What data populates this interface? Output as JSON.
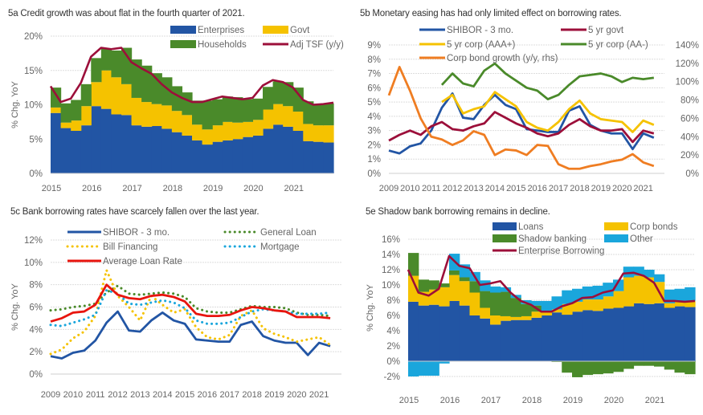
{
  "colors": {
    "blue": "#2255a4",
    "yellow": "#f5c200",
    "green": "#4a8a2a",
    "maroon": "#9c0f3a",
    "orange": "#ef7d22",
    "cyan": "#1aa6dc",
    "red": "#e8150e",
    "grid": "#dddddd",
    "tick": "#666666"
  },
  "chart_data": [
    {
      "id": "5a",
      "type": "area",
      "title": "5a Credit growth was about flat in the fourth quarter of 2021.",
      "ylabel": "% Chg. YoY",
      "ylim": [
        0,
        20
      ],
      "yticks": [
        "0%",
        "5%",
        "10%",
        "15%",
        "20%"
      ],
      "xticks": [
        "2015",
        "2016",
        "2017",
        "2018",
        "2019",
        "2020",
        "2021"
      ],
      "xlim": [
        2015,
        2022
      ],
      "grid": true,
      "legend": "top-right",
      "x": [
        2015.0,
        2015.25,
        2015.5,
        2015.75,
        2016.0,
        2016.25,
        2016.5,
        2016.75,
        2017.0,
        2017.25,
        2017.5,
        2017.75,
        2018.0,
        2018.25,
        2018.5,
        2018.75,
        2019.0,
        2019.25,
        2019.5,
        2019.75,
        2020.0,
        2020.25,
        2020.5,
        2020.75,
        2021.0,
        2021.25,
        2021.5,
        2021.75,
        2022.0
      ],
      "series": [
        {
          "name": "Enterprises",
          "kind": "stack",
          "color": "blue",
          "values": [
            8.8,
            6.6,
            6.2,
            7.0,
            9.8,
            9.4,
            8.6,
            8.5,
            7.0,
            6.8,
            6.9,
            6.5,
            6.0,
            5.5,
            4.8,
            4.2,
            4.6,
            4.8,
            5.0,
            5.3,
            5.5,
            6.5,
            7.1,
            6.8,
            6.2,
            4.7,
            4.6,
            4.5,
            4.6
          ]
        },
        {
          "name": "Govt",
          "kind": "stack",
          "color": "yellow",
          "values": [
            0.8,
            0.8,
            1.5,
            2.8,
            3.5,
            5.6,
            5.4,
            4.5,
            4.0,
            3.6,
            3.2,
            3.4,
            3.1,
            3.0,
            2.3,
            2.2,
            2.4,
            2.7,
            2.4,
            2.2,
            2.3,
            2.8,
            3.0,
            3.0,
            2.8,
            2.5,
            2.4,
            2.5,
            2.6
          ]
        },
        {
          "name": "Households",
          "kind": "stack",
          "color": "green",
          "values": [
            2.9,
            2.8,
            3.0,
            3.2,
            3.5,
            3.2,
            3.9,
            5.3,
            5.6,
            5.3,
            4.5,
            4.1,
            3.6,
            3.3,
            3.5,
            4.2,
            3.8,
            3.7,
            3.7,
            3.3,
            3.1,
            3.3,
            3.3,
            3.5,
            3.5,
            3.3,
            3.1,
            3.2,
            3.1
          ]
        },
        {
          "name": "Adj TSF (y/y)",
          "kind": "line",
          "color": "maroon",
          "values": [
            12.7,
            10.4,
            10.9,
            13.2,
            17.0,
            18.3,
            18.1,
            18.3,
            16.2,
            15.3,
            14.5,
            13.0,
            11.8,
            11.0,
            10.4,
            10.4,
            10.8,
            11.2,
            11.0,
            10.8,
            11.0,
            12.8,
            13.6,
            13.3,
            12.5,
            10.7,
            10.0,
            10.1,
            10.3
          ]
        }
      ]
    },
    {
      "id": "5b",
      "type": "line",
      "title": "5b Monetary easing has had only limited effect on borrowing rates.",
      "ylabel": "",
      "ylim": [
        0,
        9
      ],
      "yticks": [
        "0%",
        "1%",
        "2%",
        "3%",
        "4%",
        "5%",
        "6%",
        "7%",
        "8%",
        "9%"
      ],
      "y2lim": [
        0,
        140
      ],
      "y2ticks": [
        "0%",
        "20%",
        "40%",
        "60%",
        "80%",
        "100%",
        "120%",
        "140%"
      ],
      "xticks": [
        "2009",
        "2010",
        "2011",
        "2012",
        "2013",
        "2014",
        "2015",
        "2016",
        "2017",
        "2018",
        "2019",
        "2020",
        "2021"
      ],
      "xlim": [
        2009,
        2022
      ],
      "grid": true,
      "legend": "top",
      "x": [
        2009.0,
        2009.5,
        2010.0,
        2010.5,
        2011.0,
        2011.5,
        2012.0,
        2012.5,
        2013.0,
        2013.5,
        2014.0,
        2014.5,
        2015.0,
        2015.5,
        2016.0,
        2016.5,
        2017.0,
        2017.5,
        2018.0,
        2018.5,
        2019.0,
        2019.5,
        2020.0,
        2020.5,
        2021.0,
        2021.5
      ],
      "series": [
        {
          "name": "SHIBOR - 3 mo.",
          "axis": "left",
          "color": "blue",
          "values": [
            1.6,
            1.4,
            1.9,
            2.1,
            3.0,
            4.6,
            5.6,
            3.9,
            3.8,
            4.8,
            5.5,
            4.8,
            4.5,
            3.1,
            3.0,
            2.9,
            2.9,
            4.4,
            4.7,
            3.4,
            3.0,
            2.8,
            2.8,
            1.7,
            2.8,
            2.5
          ]
        },
        {
          "name": "5 yr govt",
          "axis": "left",
          "color": "maroon",
          "values": [
            2.3,
            2.7,
            3.0,
            2.7,
            3.3,
            3.6,
            3.1,
            3.0,
            3.3,
            3.5,
            4.3,
            3.9,
            3.5,
            3.2,
            2.8,
            2.6,
            2.8,
            3.4,
            3.8,
            3.3,
            3.0,
            3.0,
            3.1,
            2.2,
            3.0,
            2.8
          ]
        },
        {
          "name": "5 yr corp (AAA+)",
          "axis": "left",
          "color": "yellow",
          "values": [
            null,
            null,
            null,
            null,
            null,
            5.0,
            5.5,
            4.2,
            4.5,
            4.7,
            5.7,
            5.2,
            4.7,
            3.6,
            3.2,
            3.0,
            3.6,
            4.5,
            5.1,
            4.2,
            3.8,
            3.7,
            3.6,
            2.9,
            3.7,
            3.4
          ]
        },
        {
          "name": "5 yr corp (AA-)",
          "axis": "left",
          "color": "green",
          "values": [
            null,
            null,
            null,
            null,
            null,
            6.2,
            7.0,
            6.3,
            6.1,
            7.2,
            7.7,
            7.0,
            6.5,
            6.0,
            5.8,
            5.2,
            5.5,
            6.2,
            6.8,
            6.9,
            7.0,
            6.8,
            6.4,
            6.7,
            6.6,
            6.7
          ]
        },
        {
          "name": "Corp bond growth (y/y, rhs)",
          "axis": "right",
          "color": "orange",
          "values": [
            85,
            116,
            90,
            60,
            40,
            37,
            31,
            36,
            46,
            42,
            20,
            26,
            25,
            20,
            31,
            30,
            10,
            5,
            5,
            8,
            10,
            13,
            15,
            21,
            12,
            8
          ]
        }
      ]
    },
    {
      "id": "5c",
      "type": "line",
      "title": "5c Bank borrowing rates have scarcely fallen over the last year.",
      "ylabel": "% Chg. YoY",
      "ylim": [
        0,
        12
      ],
      "yticks": [
        "0%",
        "2%",
        "4%",
        "6%",
        "8%",
        "10%",
        "12%"
      ],
      "xticks": [
        "2009",
        "2010",
        "2011",
        "2012",
        "2013",
        "2014",
        "2015",
        "2016",
        "2017",
        "2018",
        "2019",
        "2020",
        "2021"
      ],
      "xlim": [
        2009,
        2022
      ],
      "grid": true,
      "legend": "top",
      "x": [
        2009.0,
        2009.5,
        2010.0,
        2010.5,
        2011.0,
        2011.5,
        2012.0,
        2012.5,
        2013.0,
        2013.5,
        2014.0,
        2014.5,
        2015.0,
        2015.5,
        2016.0,
        2016.5,
        2017.0,
        2017.5,
        2018.0,
        2018.5,
        2019.0,
        2019.5,
        2020.0,
        2020.5,
        2021.0,
        2021.5
      ],
      "series": [
        {
          "name": "SHIBOR - 3 mo.",
          "style": "solid",
          "color": "blue",
          "values": [
            1.6,
            1.4,
            1.9,
            2.1,
            3.0,
            4.6,
            5.6,
            3.9,
            3.8,
            4.8,
            5.5,
            4.8,
            4.5,
            3.1,
            3.0,
            2.9,
            2.9,
            4.4,
            4.7,
            3.4,
            3.0,
            2.8,
            2.8,
            1.7,
            2.8,
            2.5
          ]
        },
        {
          "name": "General Loan",
          "style": "dotted",
          "color": "green",
          "values": [
            5.7,
            5.8,
            6.0,
            6.1,
            6.3,
            7.3,
            7.9,
            7.2,
            7.1,
            7.2,
            7.3,
            7.2,
            6.9,
            5.9,
            5.6,
            5.5,
            5.5,
            5.8,
            6.1,
            6.0,
            6.0,
            5.9,
            5.5,
            5.3,
            5.3,
            5.2
          ]
        },
        {
          "name": "Bill Financing",
          "style": "dotted",
          "color": "yellow",
          "values": [
            1.8,
            2.2,
            3.2,
            3.8,
            5.2,
            9.3,
            7.0,
            6.0,
            4.8,
            7.0,
            6.2,
            5.5,
            5.8,
            4.2,
            3.3,
            3.1,
            3.5,
            5.2,
            5.7,
            4.1,
            3.6,
            3.3,
            2.9,
            3.1,
            3.3,
            2.6
          ]
        },
        {
          "name": "Mortgage",
          "style": "dotted",
          "color": "cyan",
          "values": [
            4.4,
            4.3,
            4.6,
            4.9,
            5.3,
            7.5,
            7.2,
            6.3,
            6.2,
            6.4,
            6.6,
            6.4,
            5.9,
            4.8,
            4.5,
            4.5,
            4.6,
            5.1,
            5.6,
            5.8,
            5.7,
            5.6,
            5.4,
            5.4,
            5.4,
            5.5
          ]
        },
        {
          "name": "Average Loan Rate",
          "style": "solid",
          "color": "red",
          "values": [
            4.7,
            5.0,
            5.5,
            5.6,
            6.2,
            8.0,
            7.1,
            6.8,
            6.7,
            7.0,
            7.1,
            6.9,
            6.5,
            5.4,
            5.2,
            5.2,
            5.3,
            5.7,
            6.0,
            5.9,
            5.7,
            5.6,
            5.1,
            5.1,
            5.1,
            5.0
          ]
        }
      ]
    },
    {
      "id": "5e",
      "type": "area",
      "title": "5e Shadow bank borrowing remains in decline.",
      "ylabel": "% Chg. YoY",
      "ylim": [
        -2,
        16
      ],
      "yticks": [
        "-2%",
        "0%",
        "2%",
        "4%",
        "6%",
        "8%",
        "10%",
        "12%",
        "14%",
        "16%"
      ],
      "xticks": [
        "2015",
        "2016",
        "2017",
        "2018",
        "2019",
        "2020",
        "2021"
      ],
      "xlim": [
        2015,
        2022
      ],
      "grid": true,
      "legend": "top-right",
      "x": [
        2015.0,
        2015.25,
        2015.5,
        2015.75,
        2016.0,
        2016.25,
        2016.5,
        2016.75,
        2017.0,
        2017.25,
        2017.5,
        2017.75,
        2018.0,
        2018.25,
        2018.5,
        2018.75,
        2019.0,
        2019.25,
        2019.5,
        2019.75,
        2020.0,
        2020.25,
        2020.5,
        2020.75,
        2021.0,
        2021.25,
        2021.5,
        2021.75,
        2022.0
      ],
      "series": [
        {
          "name": "Loans",
          "kind": "stack",
          "color": "blue",
          "values": [
            7.8,
            7.3,
            7.4,
            7.2,
            7.9,
            7.3,
            6.0,
            5.6,
            4.8,
            5.3,
            5.4,
            5.4,
            5.7,
            6.0,
            6.4,
            6.1,
            6.5,
            6.7,
            6.6,
            6.9,
            7.0,
            7.2,
            7.6,
            7.5,
            7.6,
            7.0,
            7.2,
            7.1,
            7.3
          ]
        },
        {
          "name": "Corp bonds",
          "kind": "stack",
          "color": "yellow",
          "values": [
            3.4,
            1.8,
            2.0,
            2.5,
            3.4,
            3.2,
            3.0,
            1.4,
            1.2,
            0.6,
            0.4,
            0.5,
            0.8,
            0.6,
            0.4,
            1.4,
            1.3,
            1.4,
            1.5,
            1.6,
            2.2,
            3.8,
            3.6,
            3.5,
            2.8,
            0.6,
            0.6,
            0.8,
            1.0
          ]
        },
        {
          "name": "Shadow banking",
          "kind": "stack",
          "color": "green",
          "values": [
            3.0,
            1.6,
            1.2,
            0.5,
            0.6,
            0.5,
            1.5,
            2.2,
            3.0,
            3.2,
            2.5,
            1.6,
            0.8,
            0.0,
            -0.1,
            -1.5,
            -2.1,
            -1.8,
            -1.7,
            -1.6,
            -1.4,
            -1.0,
            -0.6,
            -0.6,
            -0.7,
            -1.1,
            -1.5,
            -1.7,
            -1.7
          ]
        },
        {
          "name": "Other",
          "kind": "stack",
          "color": "cyan",
          "values": [
            -2.0,
            -1.9,
            -1.9,
            -0.3,
            2.2,
            1.7,
            1.2,
            1.4,
            0.8,
            0.6,
            0.4,
            0.5,
            0.6,
            1.3,
            1.7,
            1.8,
            1.7,
            1.7,
            1.8,
            1.8,
            1.5,
            1.4,
            1.2,
            1.0,
            1.0,
            1.8,
            1.7,
            1.8,
            1.6
          ]
        },
        {
          "name": "Enterprise Borrowing",
          "kind": "line",
          "color": "maroon",
          "values": [
            12.0,
            9.0,
            8.6,
            9.5,
            13.8,
            12.5,
            12.2,
            10.0,
            10.2,
            10.5,
            9.0,
            7.9,
            7.4,
            6.5,
            6.5,
            7.2,
            7.6,
            8.3,
            8.4,
            9.0,
            9.3,
            11.5,
            11.6,
            11.2,
            10.3,
            7.9,
            7.9,
            7.8,
            7.9
          ]
        }
      ]
    }
  ]
}
